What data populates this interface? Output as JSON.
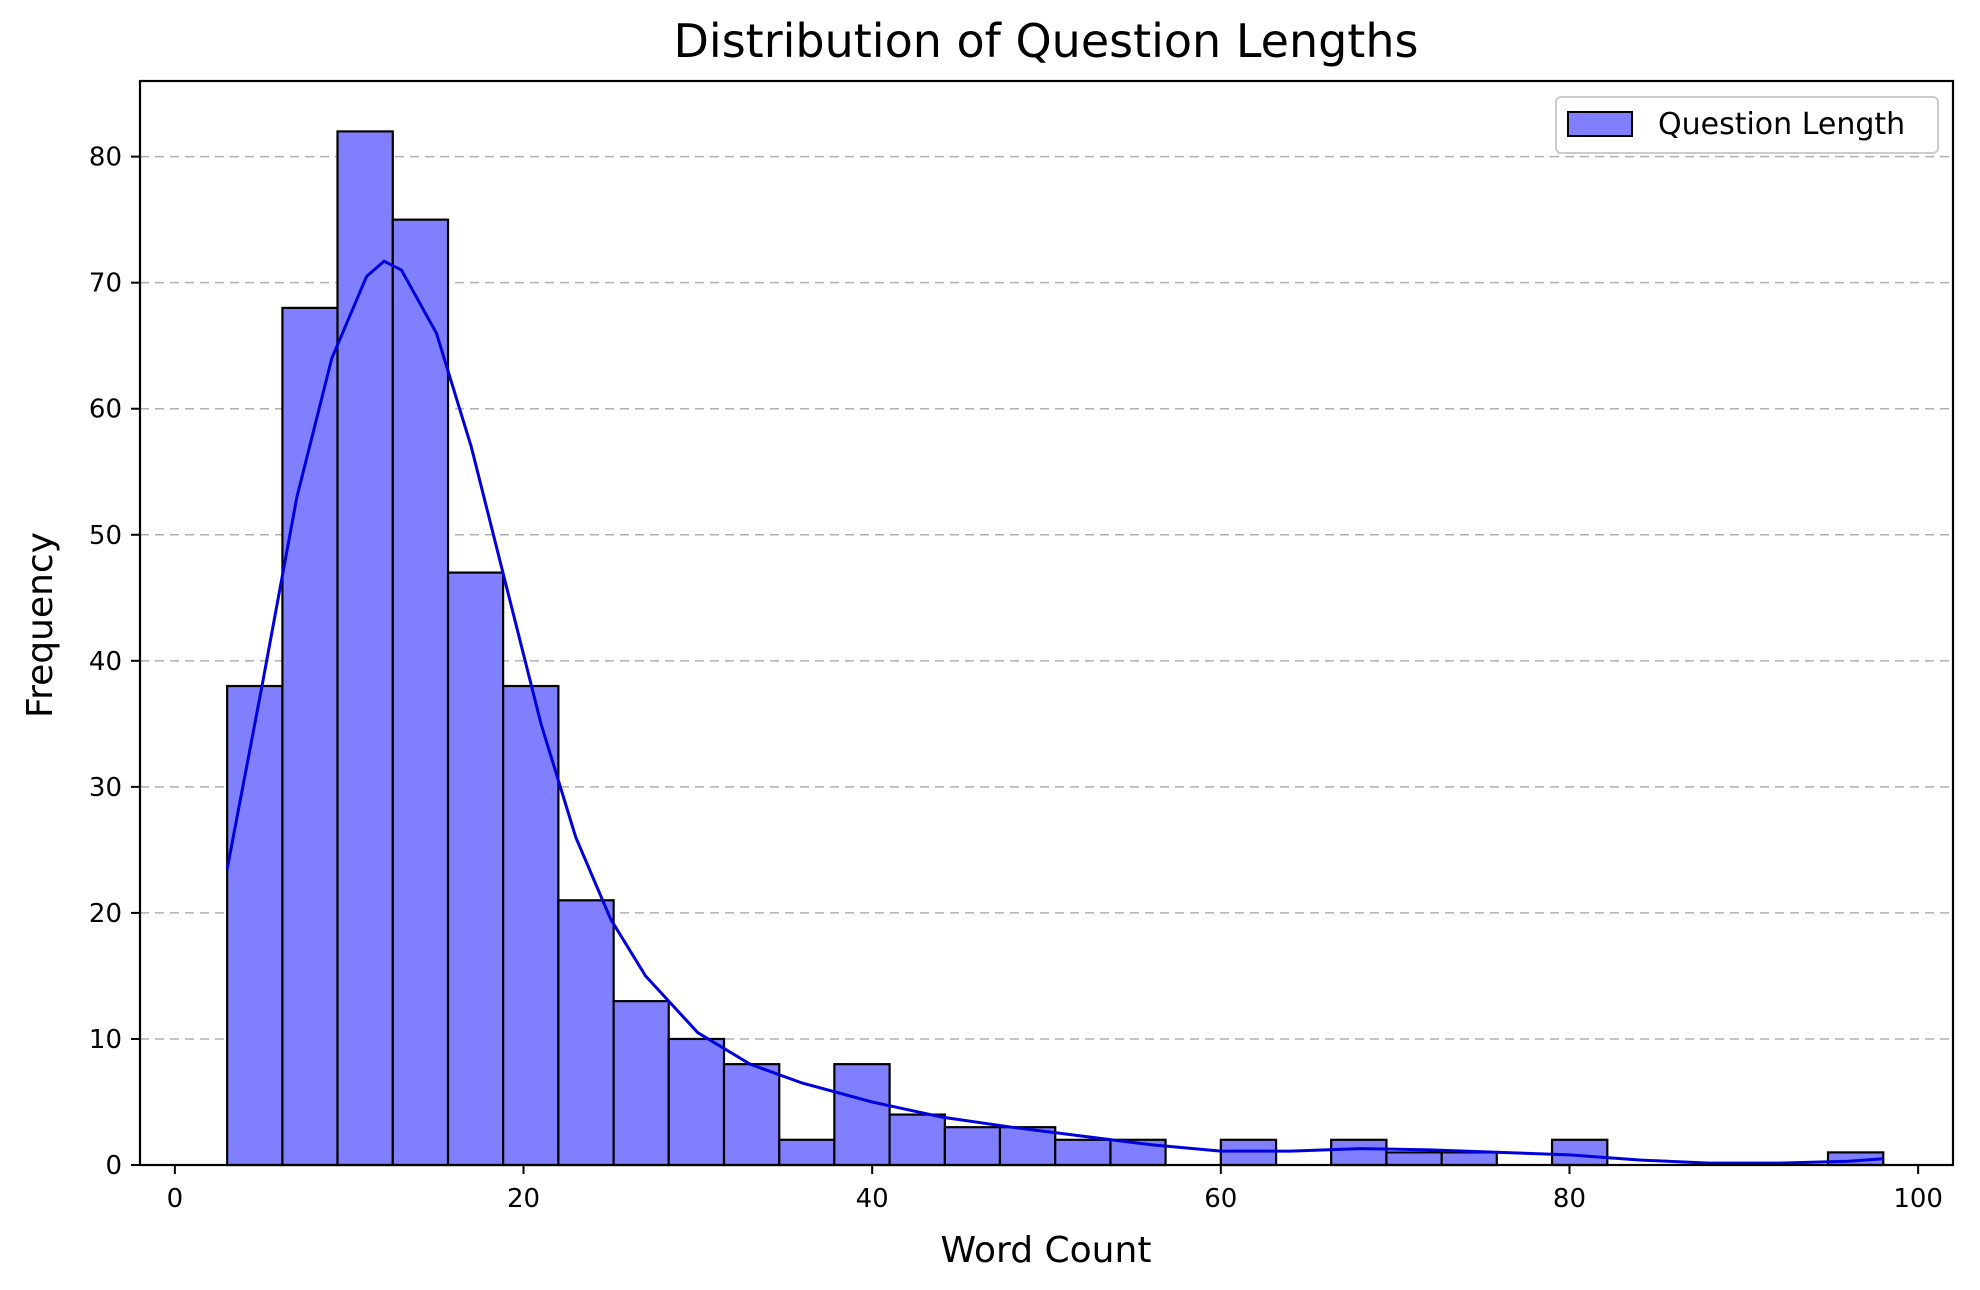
{
  "chart_data": {
    "type": "bar",
    "title": "Distribution of Question Lengths",
    "xlabel": "Word Count",
    "ylabel": "Frequency",
    "xlim": [
      -2,
      102
    ],
    "ylim": [
      0,
      86
    ],
    "xticks": [
      0,
      20,
      40,
      60,
      80,
      100
    ],
    "yticks": [
      0,
      10,
      20,
      30,
      40,
      50,
      60,
      70,
      80
    ],
    "grid": "y dashed",
    "legend": {
      "placement": "top-right",
      "entries": [
        "Question Length"
      ]
    },
    "bar_color": "#8080ff",
    "kde_color": "#0000dd",
    "bin_edges": [
      3,
      6.17,
      9.33,
      12.5,
      15.67,
      18.83,
      22,
      25.17,
      28.33,
      31.5,
      34.67,
      37.83,
      41,
      44.17,
      47.33,
      50.5,
      53.67,
      56.83,
      60,
      63.17,
      66.33,
      69.5,
      72.67,
      75.83,
      79,
      82.17,
      85.33,
      88.5,
      91.67,
      94.83,
      98
    ],
    "counts": [
      38,
      68,
      82,
      75,
      47,
      38,
      21,
      13,
      10,
      8,
      2,
      8,
      4,
      3,
      3,
      2,
      2,
      0,
      2,
      0,
      2,
      1,
      1,
      0,
      2,
      0,
      0,
      0,
      0,
      1
    ],
    "series": [
      {
        "name": "Question Length",
        "type": "kde-line",
        "x": [
          3,
          5,
          7,
          9,
          11,
          12,
          13,
          15,
          17,
          19,
          21,
          23,
          25,
          27,
          30,
          33,
          36,
          40,
          44,
          48,
          52,
          56,
          60,
          64,
          68,
          72,
          76,
          80,
          84,
          88,
          92,
          96,
          98
        ],
        "y": [
          23.5,
          38,
          53,
          64,
          70.5,
          71.7,
          71,
          66,
          57,
          46,
          35,
          26,
          19.5,
          15,
          10.5,
          8,
          6.5,
          5,
          3.8,
          3,
          2.3,
          1.6,
          1.1,
          1.1,
          1.3,
          1.2,
          1,
          0.8,
          0.4,
          0.15,
          0.15,
          0.3,
          0.5
        ]
      }
    ]
  }
}
